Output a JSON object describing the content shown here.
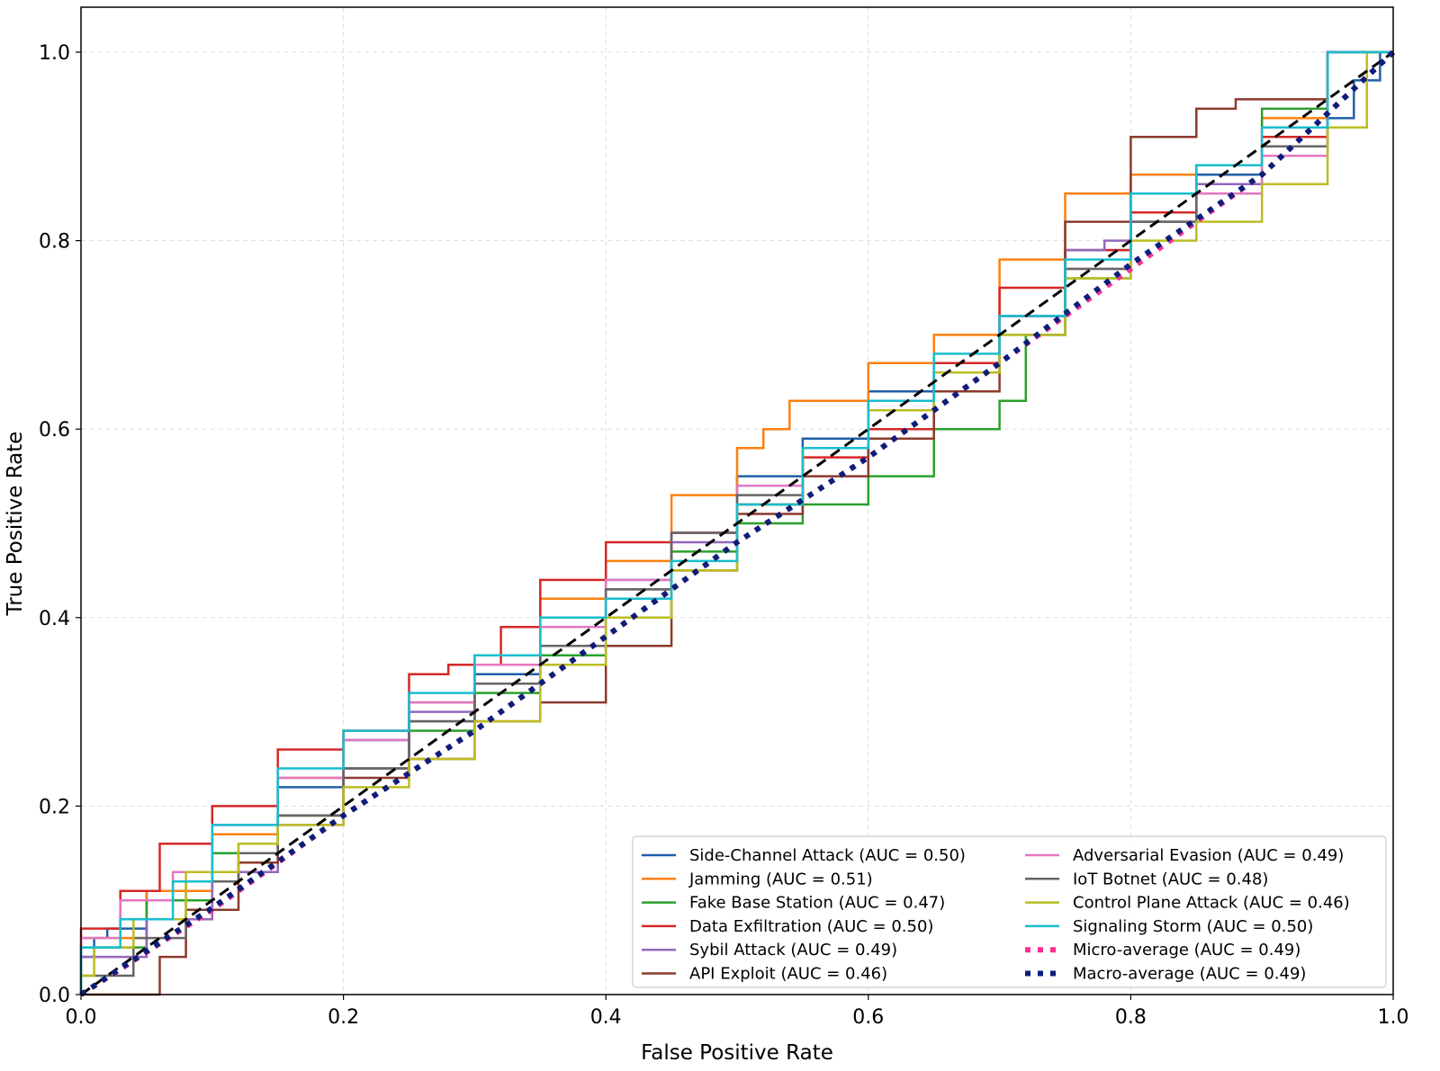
{
  "chart_data": {
    "type": "line",
    "title": "",
    "xlabel": "False Positive Rate",
    "ylabel": "True Positive Rate",
    "xlim": [
      0.0,
      1.0
    ],
    "ylim": [
      0.0,
      1.0
    ],
    "xticks": [
      "0.0",
      "0.2",
      "0.4",
      "0.6",
      "0.8",
      "1.0"
    ],
    "yticks": [
      "0.0",
      "0.2",
      "0.4",
      "0.6",
      "0.8",
      "1.0"
    ],
    "grid": true,
    "legend_position": "lower-right",
    "series": [
      {
        "name": "Side-Channel Attack (AUC = 0.50)",
        "color": "#1f5fa8",
        "style": "solid",
        "x": [
          0,
          0.01,
          0.02,
          0.05,
          0.1,
          0.15,
          0.2,
          0.25,
          0.3,
          0.35,
          0.4,
          0.45,
          0.5,
          0.55,
          0.6,
          0.65,
          0.7,
          0.75,
          0.8,
          0.85,
          0.9,
          0.95,
          0.97,
          0.99,
          1.0
        ],
        "y": [
          0,
          0.04,
          0.06,
          0.07,
          0.11,
          0.17,
          0.22,
          0.27,
          0.29,
          0.34,
          0.39,
          0.44,
          0.49,
          0.55,
          0.59,
          0.64,
          0.66,
          0.72,
          0.79,
          0.83,
          0.87,
          0.9,
          0.93,
          0.97,
          1.0
        ]
      },
      {
        "name": "Jamming (AUC = 0.51)",
        "color": "#ff7f0e",
        "style": "solid",
        "x": [
          0,
          0.05,
          0.1,
          0.15,
          0.2,
          0.25,
          0.3,
          0.35,
          0.4,
          0.45,
          0.5,
          0.52,
          0.54,
          0.6,
          0.65,
          0.7,
          0.75,
          0.8,
          0.85,
          0.9,
          0.95,
          1.0
        ],
        "y": [
          0,
          0.06,
          0.11,
          0.17,
          0.23,
          0.28,
          0.31,
          0.36,
          0.42,
          0.46,
          0.53,
          0.58,
          0.6,
          0.63,
          0.67,
          0.7,
          0.78,
          0.85,
          0.87,
          0.88,
          0.93,
          1.0
        ]
      },
      {
        "name": "Fake Base Station (AUC = 0.47)",
        "color": "#2ca02c",
        "style": "solid",
        "x": [
          0,
          0.05,
          0.1,
          0.15,
          0.2,
          0.25,
          0.3,
          0.35,
          0.4,
          0.45,
          0.5,
          0.55,
          0.6,
          0.65,
          0.7,
          0.72,
          0.75,
          0.8,
          0.85,
          0.9,
          0.95,
          1.0
        ],
        "y": [
          0,
          0.05,
          0.1,
          0.15,
          0.19,
          0.24,
          0.28,
          0.32,
          0.36,
          0.4,
          0.47,
          0.5,
          0.52,
          0.55,
          0.6,
          0.63,
          0.7,
          0.76,
          0.85,
          0.88,
          0.94,
          1.0
        ]
      },
      {
        "name": "Data Exfiltration (AUC = 0.50)",
        "color": "#d62728",
        "style": "solid",
        "x": [
          0,
          0.03,
          0.06,
          0.1,
          0.15,
          0.2,
          0.25,
          0.28,
          0.32,
          0.35,
          0.4,
          0.45,
          0.5,
          0.55,
          0.6,
          0.65,
          0.7,
          0.75,
          0.8,
          0.85,
          0.9,
          0.95,
          1.0
        ],
        "y": [
          0,
          0.07,
          0.11,
          0.16,
          0.2,
          0.26,
          0.28,
          0.34,
          0.35,
          0.39,
          0.44,
          0.48,
          0.49,
          0.52,
          0.57,
          0.6,
          0.67,
          0.75,
          0.79,
          0.83,
          0.86,
          0.91,
          1.0
        ]
      },
      {
        "name": "Sybil Attack (AUC = 0.49)",
        "color": "#9467bd",
        "style": "solid",
        "x": [
          0,
          0.05,
          0.1,
          0.15,
          0.2,
          0.25,
          0.3,
          0.35,
          0.4,
          0.45,
          0.5,
          0.55,
          0.6,
          0.65,
          0.7,
          0.75,
          0.78,
          0.8,
          0.85,
          0.9,
          0.95,
          1.0
        ],
        "y": [
          0,
          0.04,
          0.08,
          0.13,
          0.18,
          0.24,
          0.3,
          0.35,
          0.39,
          0.43,
          0.48,
          0.52,
          0.58,
          0.62,
          0.66,
          0.72,
          0.79,
          0.8,
          0.82,
          0.86,
          0.92,
          1.0
        ]
      },
      {
        "name": "API Exploit (AUC = 0.46)",
        "color": "#8c3a2b",
        "style": "solid",
        "x": [
          0,
          0.06,
          0.08,
          0.12,
          0.15,
          0.2,
          0.25,
          0.3,
          0.35,
          0.4,
          0.45,
          0.5,
          0.55,
          0.6,
          0.65,
          0.7,
          0.75,
          0.8,
          0.85,
          0.88,
          0.92,
          0.95,
          1.0
        ],
        "y": [
          0,
          0.0,
          0.04,
          0.09,
          0.14,
          0.19,
          0.23,
          0.25,
          0.29,
          0.31,
          0.37,
          0.45,
          0.51,
          0.55,
          0.59,
          0.64,
          0.72,
          0.82,
          0.91,
          0.94,
          0.95,
          0.95,
          1.0
        ]
      },
      {
        "name": "Adversarial Evasion (AUC = 0.49)",
        "color": "#e377c2",
        "style": "solid",
        "x": [
          0,
          0.03,
          0.07,
          0.1,
          0.15,
          0.2,
          0.25,
          0.3,
          0.35,
          0.4,
          0.45,
          0.5,
          0.55,
          0.6,
          0.65,
          0.7,
          0.75,
          0.8,
          0.85,
          0.9,
          0.95,
          1.0
        ],
        "y": [
          0,
          0.06,
          0.1,
          0.13,
          0.18,
          0.23,
          0.27,
          0.31,
          0.35,
          0.39,
          0.44,
          0.49,
          0.54,
          0.58,
          0.62,
          0.66,
          0.72,
          0.77,
          0.82,
          0.85,
          0.89,
          1.0
        ]
      },
      {
        "name": "IoT Botnet (AUC = 0.48)",
        "color": "#666666",
        "style": "solid",
        "x": [
          0,
          0.04,
          0.08,
          0.12,
          0.15,
          0.2,
          0.25,
          0.3,
          0.35,
          0.4,
          0.45,
          0.5,
          0.55,
          0.6,
          0.65,
          0.7,
          0.75,
          0.8,
          0.85,
          0.9,
          0.95,
          1.0
        ],
        "y": [
          0,
          0.02,
          0.06,
          0.12,
          0.15,
          0.19,
          0.24,
          0.29,
          0.33,
          0.37,
          0.43,
          0.49,
          0.53,
          0.58,
          0.63,
          0.66,
          0.7,
          0.77,
          0.82,
          0.88,
          0.9,
          1.0
        ]
      },
      {
        "name": "Control Plane Attack (AUC = 0.46)",
        "color": "#bcbd22",
        "style": "solid",
        "x": [
          0,
          0.01,
          0.04,
          0.08,
          0.12,
          0.15,
          0.2,
          0.25,
          0.3,
          0.35,
          0.4,
          0.45,
          0.5,
          0.55,
          0.6,
          0.65,
          0.7,
          0.75,
          0.8,
          0.85,
          0.9,
          0.95,
          0.98,
          1.0
        ],
        "y": [
          0,
          0.02,
          0.05,
          0.08,
          0.13,
          0.16,
          0.18,
          0.22,
          0.25,
          0.29,
          0.35,
          0.4,
          0.45,
          0.52,
          0.58,
          0.62,
          0.66,
          0.7,
          0.76,
          0.8,
          0.82,
          0.86,
          0.92,
          1.0
        ]
      },
      {
        "name": "Signaling Storm (AUC = 0.50)",
        "color": "#17becf",
        "style": "solid",
        "x": [
          0,
          0.03,
          0.07,
          0.1,
          0.15,
          0.2,
          0.25,
          0.3,
          0.35,
          0.4,
          0.45,
          0.5,
          0.55,
          0.6,
          0.65,
          0.7,
          0.75,
          0.8,
          0.85,
          0.9,
          0.95,
          1.0
        ],
        "y": [
          0,
          0.05,
          0.08,
          0.12,
          0.18,
          0.24,
          0.28,
          0.32,
          0.36,
          0.4,
          0.42,
          0.46,
          0.52,
          0.58,
          0.63,
          0.68,
          0.72,
          0.78,
          0.85,
          0.88,
          0.92,
          1.0
        ]
      },
      {
        "name": "Micro-average (AUC = 0.49)",
        "color": "#ff2f92",
        "style": "dotted",
        "x": [
          0,
          0.1,
          0.2,
          0.3,
          0.4,
          0.5,
          0.6,
          0.7,
          0.8,
          0.9,
          1.0
        ],
        "y": [
          0,
          0.09,
          0.19,
          0.28,
          0.38,
          0.48,
          0.57,
          0.67,
          0.77,
          0.87,
          1.0
        ]
      },
      {
        "name": "Macro-average (AUC = 0.49)",
        "color": "#0b1f7a",
        "style": "dotted",
        "x": [
          0,
          0.1,
          0.2,
          0.3,
          0.4,
          0.5,
          0.6,
          0.7,
          0.8,
          0.9,
          1.0
        ],
        "y": [
          0,
          0.092,
          0.19,
          0.28,
          0.38,
          0.48,
          0.57,
          0.67,
          0.775,
          0.87,
          1.0
        ]
      },
      {
        "name": "Chance",
        "color": "#000000",
        "style": "dashed",
        "in_legend": false,
        "x": [
          0,
          1.0
        ],
        "y": [
          0,
          1.0
        ]
      }
    ]
  }
}
